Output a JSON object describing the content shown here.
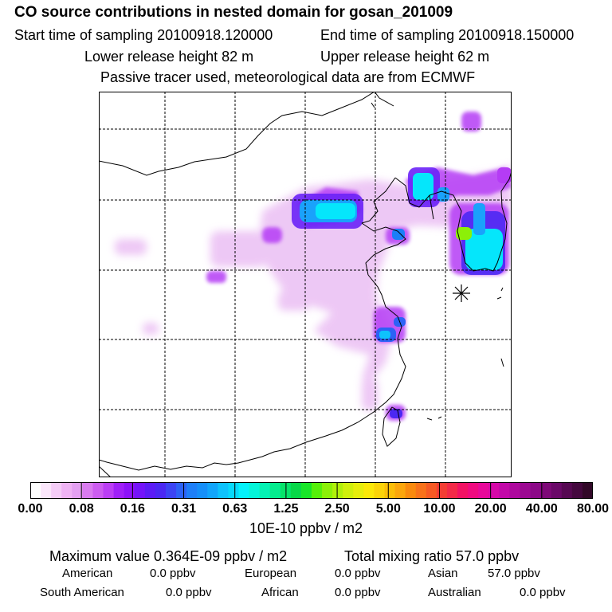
{
  "title": "CO  source contributions in nested domain for gosan_201009",
  "start_time_label": "Start time of sampling 20100918.120000",
  "end_time_label": "End time of sampling 20100918.150000",
  "lower_height_label": "Lower release height   82 m",
  "upper_height_label": "Upper release height   62 m",
  "tracer_note": "Passive tracer used, meteorological data are from ECMWF",
  "colorbar": {
    "ticks": [
      "0.00",
      "0.08",
      "0.16",
      "0.31",
      "0.63",
      "1.25",
      "2.50",
      "5.00",
      "10.00",
      "20.00",
      "40.00",
      "80.00"
    ],
    "units": "10E-10 ppbv / m2",
    "colors": [
      "#ffffff",
      "#fbe6fb",
      "#f5ccf7",
      "#efb3f4",
      "#e4a0f2",
      "#d97bef",
      "#cc5cf0",
      "#bb3ef5",
      "#a020f8",
      "#8d12f9",
      "#7414fa",
      "#5c1cf6",
      "#4b28f3",
      "#3c44f4",
      "#2d62f6",
      "#1e7ff8",
      "#168ff9",
      "#12a5fb",
      "#0ec2fc",
      "#07d9fb",
      "#04f2fb",
      "#04f5d9",
      "#04f2b4",
      "#04ec8e",
      "#06e36a",
      "#08d848",
      "#18e628",
      "#56f00a",
      "#8cf008",
      "#b0f00a",
      "#cff00c",
      "#e6ee0c",
      "#fbe808",
      "#fbd408",
      "#fbbe08",
      "#fba60c",
      "#f98a0e",
      "#f8721a",
      "#f65a24",
      "#f43e34",
      "#f32a48",
      "#f21264",
      "#f00a80",
      "#e8089a",
      "#d608a8",
      "#c208a8",
      "#ae089e",
      "#9c0892",
      "#8c0888",
      "#7e0878",
      "#6a0868",
      "#560852",
      "#44083e",
      "#320828"
    ]
  },
  "summary": {
    "max_label": "Maximum value  0.364E-09 ppbv / m2",
    "total_label": "Total mixing ratio       57.0 ppbv"
  },
  "regions": [
    {
      "name": "American",
      "value": "0.0 ppbv"
    },
    {
      "name": "European",
      "value": "0.0 ppbv"
    },
    {
      "name": "Asian",
      "value": "57.0 ppbv"
    },
    {
      "name": "South American",
      "value": "0.0 ppbv"
    },
    {
      "name": "African",
      "value": "0.0 ppbv"
    },
    {
      "name": "Australian",
      "value": "0.0 ppbv"
    }
  ]
}
